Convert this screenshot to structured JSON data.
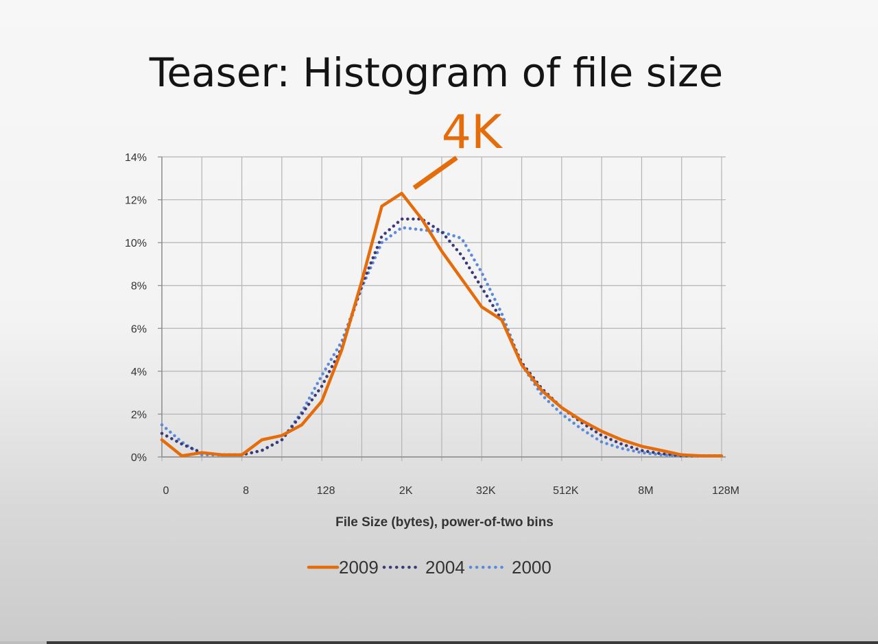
{
  "slide": {
    "title": "Teaser: Histogram of file size"
  },
  "chart_data": {
    "type": "line",
    "title": "",
    "xlabel": "File Size (bytes), power-of-two bins",
    "ylabel": "",
    "x_tick_labels": [
      "0",
      "8",
      "128",
      "2K",
      "32K",
      "512K",
      "8M",
      "128M"
    ],
    "x_bins": 29,
    "y_tick_labels": [
      "0%",
      "2%",
      "4%",
      "6%",
      "8%",
      "10%",
      "12%",
      "14%"
    ],
    "ylim": [
      0,
      14
    ],
    "grid": true,
    "legend": {
      "position": "bottom"
    },
    "series": [
      {
        "name": "2009",
        "color": "#e46c0a",
        "style": "solid",
        "values": [
          0.8,
          0.05,
          0.2,
          0.1,
          0.1,
          0.8,
          1.0,
          1.5,
          2.6,
          5.0,
          8.2,
          11.7,
          12.3,
          11.1,
          9.6,
          8.3,
          7.0,
          6.4,
          4.3,
          3.1,
          2.3,
          1.7,
          1.2,
          0.8,
          0.5,
          0.3,
          0.1,
          0.05,
          0.05
        ]
      },
      {
        "name": "2004",
        "color": "#3a3a7a",
        "style": "dotted",
        "values": [
          1.1,
          0.6,
          0.2,
          0.1,
          0.1,
          0.3,
          0.8,
          2.0,
          3.3,
          5.1,
          8.0,
          10.3,
          11.1,
          11.1,
          10.5,
          9.4,
          7.9,
          6.4,
          4.4,
          3.2,
          2.3,
          1.6,
          1.0,
          0.6,
          0.3,
          0.15,
          0.05,
          0.05,
          0.05
        ]
      },
      {
        "name": "2000",
        "color": "#5b8bd8",
        "style": "dotted",
        "values": [
          1.5,
          0.7,
          0.1,
          0.1,
          0.1,
          0.3,
          0.8,
          2.1,
          3.8,
          5.4,
          7.9,
          10.0,
          10.7,
          10.6,
          10.5,
          10.2,
          8.6,
          6.7,
          4.3,
          2.9,
          2.0,
          1.3,
          0.7,
          0.4,
          0.2,
          0.1,
          0.05,
          0.05,
          0.05
        ]
      }
    ],
    "annotations": [
      {
        "text": "4K",
        "color": "#e46c0a",
        "points_to": {
          "x": 12,
          "y": 12.3
        }
      }
    ]
  }
}
